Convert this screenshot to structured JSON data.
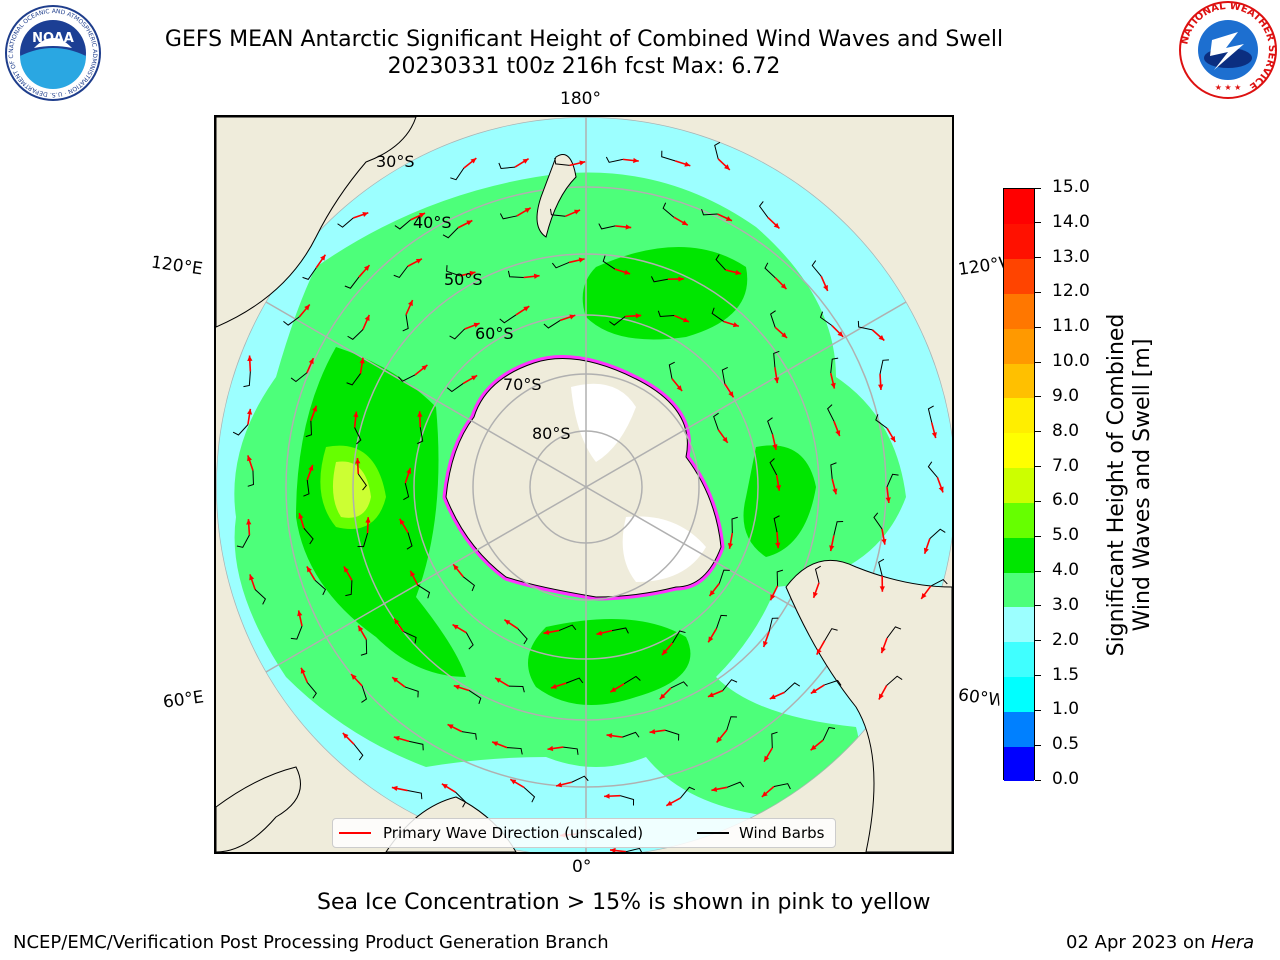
{
  "header": {
    "title_line1": "GEFS MEAN Antarctic Significant Height of Combined Wind Waves and Swell",
    "title_line2": "20230331 t00z 216h fcst   Max: 6.72"
  },
  "logos": {
    "left": {
      "text": "NOAA",
      "ring_text": "NATIONAL OCEANIC AND ATMOSPHERIC ADMINISTRATION · U.S. DEPARTMENT OF COMMERCE"
    },
    "right": {
      "ring_text": "NATIONAL WEATHER SERVICE"
    }
  },
  "map": {
    "meridian_labels": {
      "top": "180°",
      "bottom": "0°",
      "upper_left": "120°E",
      "lower_left": "60°E",
      "upper_right": "120°W",
      "lower_right": "60°W"
    },
    "latitude_labels": [
      "30°S",
      "40°S",
      "50°S",
      "60°S",
      "70°S",
      "80°S"
    ],
    "colors": {
      "land": "#efecdb",
      "ocean_1_5": "#00ffff",
      "ocean_2_3": "#9cffff",
      "ocean_3_4": "#4dff7a",
      "ocean_4_5": "#00e600",
      "ocean_5_6": "#66ff00",
      "ocean_6_7": "#ccff33",
      "ice": "#ff33ff",
      "wave_arrow": "#ff0000",
      "barb": "#000000"
    }
  },
  "legend": {
    "primary_wave_label": "Primary Wave Direction (unscaled)",
    "wind_barbs_label": "Wind Barbs"
  },
  "colorbar": {
    "label_line1": "Significant Height of Combined",
    "label_line2": "Wind Waves and Swell [m]",
    "ticks": [
      "15.0",
      "14.0",
      "13.0",
      "12.0",
      "11.0",
      "10.0",
      "9.0",
      "8.0",
      "7.0",
      "6.0",
      "5.0",
      "4.0",
      "3.0",
      "2.0",
      "1.5",
      "1.0",
      "0.5",
      "0.0"
    ],
    "colors": [
      "#0000ff",
      "#0080ff",
      "#00ffff",
      "#40ffff",
      "#9cffff",
      "#4dff7a",
      "#00e600",
      "#66ff00",
      "#ccff00",
      "#ffff00",
      "#ffee00",
      "#ffc000",
      "#ff9900",
      "#ff7700",
      "#ff4400",
      "#ff1100",
      "#ff0000"
    ]
  },
  "notes": {
    "sea_ice": "Sea Ice Concentration > 15% is shown in pink to yellow"
  },
  "footer": {
    "left": "NCEP/EMC/Verification Post Processing Product Generation Branch",
    "date": "02 Apr 2023 on ",
    "machine": "Hera"
  }
}
